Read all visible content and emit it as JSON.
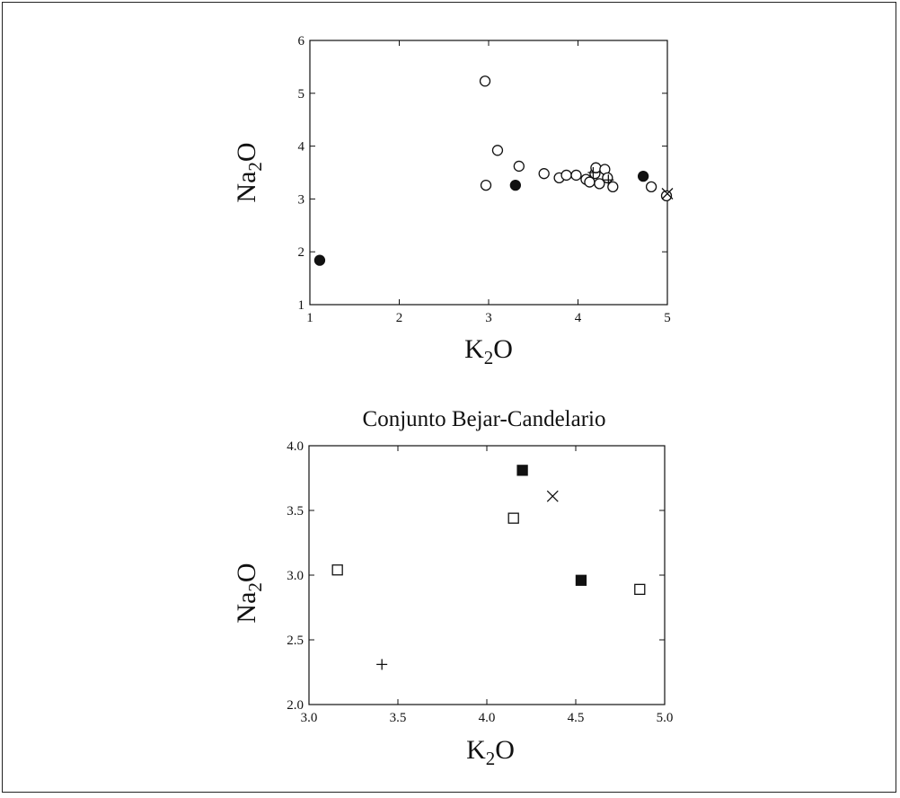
{
  "chart_data": [
    {
      "type": "scatter",
      "title": "",
      "xlabel_main": "K",
      "xlabel_sub": "2",
      "xlabel_tail": "O",
      "ylabel_main": "Na",
      "ylabel_sub": "2",
      "ylabel_tail": "O",
      "xlim": [
        1,
        5
      ],
      "ylim": [
        1,
        6
      ],
      "xticks": [
        1,
        2,
        3,
        4,
        5
      ],
      "xtick_labels": [
        "1",
        "2",
        "3",
        "4",
        "5"
      ],
      "yticks": [
        1,
        2,
        3,
        4,
        5,
        6
      ],
      "ytick_labels": [
        "1",
        "2",
        "3",
        "4",
        "5",
        "6"
      ],
      "grid": false,
      "series": [
        {
          "marker": "open-circle",
          "points": [
            [
              2.96,
              5.23
            ],
            [
              3.1,
              3.92
            ],
            [
              2.97,
              3.26
            ],
            [
              3.34,
              3.62
            ],
            [
              3.62,
              3.48
            ],
            [
              3.79,
              3.4
            ],
            [
              3.87,
              3.45
            ],
            [
              3.98,
              3.45
            ],
            [
              4.09,
              3.37
            ],
            [
              4.13,
              3.32
            ],
            [
              4.19,
              3.48
            ],
            [
              4.2,
              3.59
            ],
            [
              4.24,
              3.29
            ],
            [
              4.3,
              3.56
            ],
            [
              4.33,
              3.4
            ],
            [
              4.39,
              3.23
            ],
            [
              4.82,
              3.23
            ],
            [
              4.99,
              3.06
            ]
          ]
        },
        {
          "marker": "filled-circle",
          "points": [
            [
              1.11,
              1.84
            ],
            [
              3.3,
              3.26
            ],
            [
              4.73,
              3.43
            ]
          ]
        },
        {
          "marker": "plus",
          "points": [
            [
              4.17,
              3.5
            ],
            [
              4.34,
              3.36
            ]
          ]
        },
        {
          "marker": "cross",
          "points": [
            [
              5.0,
              3.1
            ]
          ]
        }
      ]
    },
    {
      "type": "scatter",
      "title": "Conjunto Bejar-Candelario",
      "xlabel_main": "K",
      "xlabel_sub": "2",
      "xlabel_tail": "O",
      "ylabel_main": "Na",
      "ylabel_sub": "2",
      "ylabel_tail": "O",
      "xlim": [
        3.0,
        5.0
      ],
      "ylim": [
        2.0,
        4.0
      ],
      "xticks": [
        3.0,
        3.5,
        4.0,
        4.5,
        5.0
      ],
      "xtick_labels": [
        "3.0",
        "3.5",
        "4.0",
        "4.5",
        "5.0"
      ],
      "yticks": [
        2.0,
        2.5,
        3.0,
        3.5,
        4.0
      ],
      "ytick_labels": [
        "2.0",
        "2.5",
        "3.0",
        "3.5",
        "4.0"
      ],
      "grid": false,
      "series": [
        {
          "marker": "open-square",
          "points": [
            [
              3.16,
              3.04
            ],
            [
              4.15,
              3.44
            ],
            [
              4.86,
              2.89
            ]
          ]
        },
        {
          "marker": "filled-square",
          "points": [
            [
              4.2,
              3.81
            ],
            [
              4.53,
              2.96
            ]
          ]
        },
        {
          "marker": "cross",
          "points": [
            [
              4.37,
              3.61
            ]
          ]
        },
        {
          "marker": "plus",
          "points": [
            [
              3.41,
              2.31
            ]
          ]
        }
      ]
    }
  ]
}
